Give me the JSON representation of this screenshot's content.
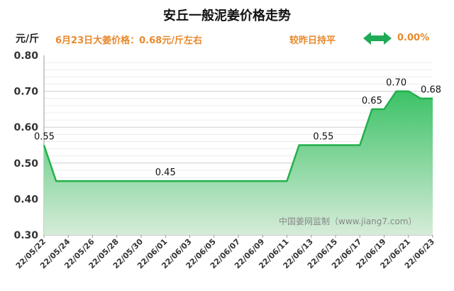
{
  "header": {
    "title": "安丘一般泥姜价格走势",
    "unit": "元/斤",
    "price_text": "6月23日大姜价格：0.68元/斤左右",
    "compare_label": "较昨日持平",
    "compare_value": "0.00%",
    "compare_icon": "double-arrow-icon"
  },
  "colors": {
    "line": "#22b04b",
    "fill_top": "#3cc266",
    "fill_bottom": "#d6ecd9",
    "accent": "#e8892c"
  },
  "watermark": "中国姜网监制（www.jiang7.com）",
  "chart_data": {
    "type": "area",
    "title": "安丘一般泥姜价格走势",
    "ylabel": "元/斤",
    "ylim": [
      0.3,
      0.8
    ],
    "yticks": [
      "0.30",
      "0.40",
      "0.50",
      "0.60",
      "0.70",
      "0.80"
    ],
    "xticks": [
      "22/05/22",
      "22/05/24",
      "22/05/26",
      "22/05/28",
      "22/05/30",
      "22/06/01",
      "22/06/03",
      "22/06/05",
      "22/06/07",
      "22/06/09",
      "22/06/11",
      "22/06/13",
      "22/06/15",
      "22/06/17",
      "22/06/19",
      "22/06/21",
      "22/06/23"
    ],
    "points": [
      {
        "x": "22/05/22",
        "y": 0.55
      },
      {
        "x": "22/05/23",
        "y": 0.45
      },
      {
        "x": "22/06/11",
        "y": 0.45
      },
      {
        "x": "22/06/12",
        "y": 0.55
      },
      {
        "x": "22/06/17",
        "y": 0.55
      },
      {
        "x": "22/06/18",
        "y": 0.65
      },
      {
        "x": "22/06/19",
        "y": 0.65
      },
      {
        "x": "22/06/20",
        "y": 0.7
      },
      {
        "x": "22/06/21",
        "y": 0.7
      },
      {
        "x": "22/06/22",
        "y": 0.68
      },
      {
        "x": "22/06/23",
        "y": 0.68
      }
    ],
    "data_labels": [
      {
        "x": "22/05/22",
        "y": 0.55,
        "text": "0.55"
      },
      {
        "x": "22/06/01",
        "y": 0.45,
        "text": "0.45"
      },
      {
        "x": "22/06/14",
        "y": 0.55,
        "text": "0.55"
      },
      {
        "x": "22/06/18",
        "y": 0.65,
        "text": "0.65"
      },
      {
        "x": "22/06/20",
        "y": 0.7,
        "text": "0.70"
      },
      {
        "x": "22/06/23",
        "y": 0.68,
        "text": "0.68"
      }
    ],
    "grid": true
  }
}
